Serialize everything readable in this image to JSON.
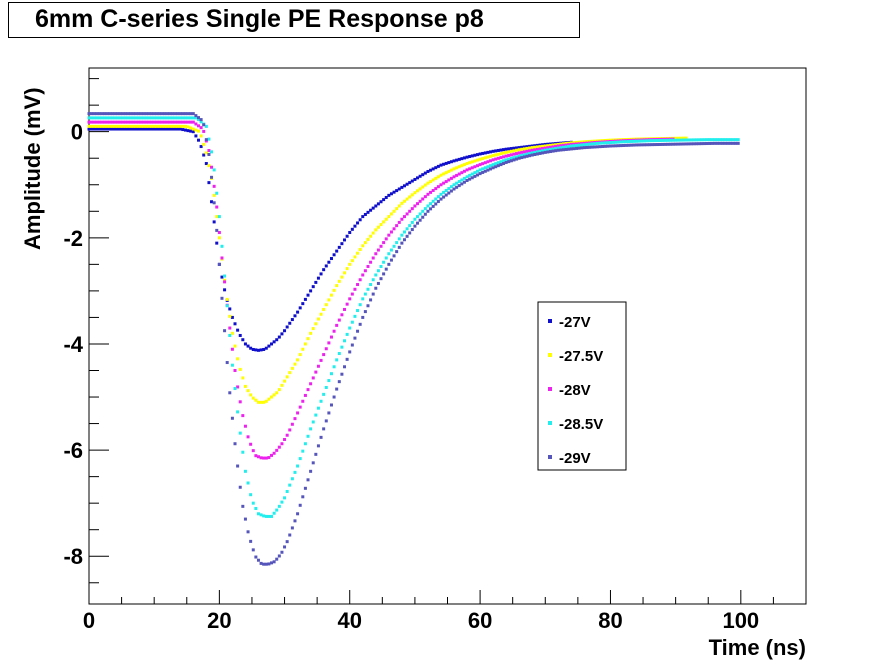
{
  "title": "6mm C-series Single PE Response p8",
  "chart_data": {
    "type": "scatter",
    "xlabel": "Time (ns)",
    "ylabel": "Amplitude (mV)",
    "xlim": [
      0,
      110
    ],
    "ylim": [
      -8.9,
      1.2
    ],
    "x_ticks": [
      0,
      20,
      40,
      60,
      80,
      100
    ],
    "y_ticks": [
      0,
      -2,
      -4,
      -6,
      -8
    ],
    "legend_position": "right-center",
    "grid": false,
    "series": [
      {
        "name": "-27V",
        "color": "#1010cc",
        "points": [
          [
            0,
            0.05
          ],
          [
            8,
            0.05
          ],
          [
            14,
            0.05
          ],
          [
            16,
            0.0
          ],
          [
            17,
            -0.2
          ],
          [
            18,
            -0.6
          ],
          [
            19,
            -1.5
          ],
          [
            20,
            -2.5
          ],
          [
            21,
            -3.1
          ],
          [
            22,
            -3.5
          ],
          [
            23,
            -3.8
          ],
          [
            24,
            -4.0
          ],
          [
            25,
            -4.1
          ],
          [
            26,
            -4.12
          ],
          [
            27,
            -4.1
          ],
          [
            28,
            -4.0
          ],
          [
            29,
            -3.9
          ],
          [
            30,
            -3.75
          ],
          [
            32,
            -3.4
          ],
          [
            34,
            -3.0
          ],
          [
            36,
            -2.6
          ],
          [
            38,
            -2.25
          ],
          [
            40,
            -1.9
          ],
          [
            42,
            -1.6
          ],
          [
            44,
            -1.4
          ],
          [
            46,
            -1.2
          ],
          [
            48,
            -1.05
          ],
          [
            50,
            -0.9
          ],
          [
            52,
            -0.75
          ],
          [
            54,
            -0.63
          ],
          [
            56,
            -0.55
          ],
          [
            58,
            -0.48
          ],
          [
            60,
            -0.42
          ],
          [
            62,
            -0.37
          ],
          [
            64,
            -0.33
          ],
          [
            66,
            -0.3
          ],
          [
            68,
            -0.27
          ],
          [
            70,
            -0.24
          ],
          [
            72,
            -0.22
          ],
          [
            74,
            -0.2
          ]
        ]
      },
      {
        "name": "-27.5V",
        "color": "#ffff00",
        "points": [
          [
            0,
            0.1
          ],
          [
            8,
            0.1
          ],
          [
            15,
            0.1
          ],
          [
            17,
            0.0
          ],
          [
            18,
            -0.4
          ],
          [
            19,
            -1.0
          ],
          [
            20,
            -2.0
          ],
          [
            21,
            -3.0
          ],
          [
            22,
            -3.8
          ],
          [
            23,
            -4.4
          ],
          [
            24,
            -4.8
          ],
          [
            25,
            -5.0
          ],
          [
            26,
            -5.1
          ],
          [
            27,
            -5.1
          ],
          [
            28,
            -5.0
          ],
          [
            29,
            -4.9
          ],
          [
            30,
            -4.7
          ],
          [
            32,
            -4.3
          ],
          [
            34,
            -3.8
          ],
          [
            36,
            -3.35
          ],
          [
            38,
            -2.9
          ],
          [
            40,
            -2.5
          ],
          [
            42,
            -2.15
          ],
          [
            44,
            -1.85
          ],
          [
            46,
            -1.6
          ],
          [
            48,
            -1.35
          ],
          [
            50,
            -1.15
          ],
          [
            52,
            -0.97
          ],
          [
            54,
            -0.82
          ],
          [
            56,
            -0.7
          ],
          [
            58,
            -0.6
          ],
          [
            60,
            -0.52
          ],
          [
            62,
            -0.45
          ],
          [
            64,
            -0.39
          ],
          [
            66,
            -0.34
          ],
          [
            68,
            -0.3
          ],
          [
            70,
            -0.27
          ],
          [
            72,
            -0.24
          ],
          [
            74,
            -0.21
          ],
          [
            76,
            -0.19
          ],
          [
            80,
            -0.16
          ],
          [
            84,
            -0.14
          ],
          [
            88,
            -0.13
          ],
          [
            92,
            -0.12
          ]
        ]
      },
      {
        "name": "-28V",
        "color": "#ee22ee",
        "points": [
          [
            0,
            0.18
          ],
          [
            8,
            0.18
          ],
          [
            16,
            0.18
          ],
          [
            17.5,
            0.05
          ],
          [
            18.5,
            -0.4
          ],
          [
            19.5,
            -1.3
          ],
          [
            20.5,
            -2.5
          ],
          [
            21.5,
            -3.6
          ],
          [
            22.5,
            -4.6
          ],
          [
            23.5,
            -5.3
          ],
          [
            24.5,
            -5.8
          ],
          [
            25.5,
            -6.1
          ],
          [
            26.5,
            -6.15
          ],
          [
            27.5,
            -6.15
          ],
          [
            28.5,
            -6.05
          ],
          [
            29.5,
            -5.9
          ],
          [
            30.5,
            -5.7
          ],
          [
            32,
            -5.3
          ],
          [
            34,
            -4.75
          ],
          [
            36,
            -4.2
          ],
          [
            38,
            -3.65
          ],
          [
            40,
            -3.15
          ],
          [
            42,
            -2.7
          ],
          [
            44,
            -2.3
          ],
          [
            46,
            -1.95
          ],
          [
            48,
            -1.65
          ],
          [
            50,
            -1.4
          ],
          [
            52,
            -1.18
          ],
          [
            54,
            -1.0
          ],
          [
            56,
            -0.85
          ],
          [
            58,
            -0.72
          ],
          [
            60,
            -0.62
          ],
          [
            62,
            -0.53
          ],
          [
            64,
            -0.46
          ],
          [
            66,
            -0.4
          ],
          [
            68,
            -0.35
          ],
          [
            70,
            -0.31
          ],
          [
            72,
            -0.27
          ],
          [
            74,
            -0.24
          ],
          [
            78,
            -0.2
          ],
          [
            82,
            -0.17
          ],
          [
            86,
            -0.15
          ],
          [
            90,
            -0.14
          ]
        ]
      },
      {
        "name": "-28.5V",
        "color": "#22eeee",
        "points": [
          [
            0,
            0.26
          ],
          [
            8,
            0.26
          ],
          [
            16.5,
            0.26
          ],
          [
            18,
            0.1
          ],
          [
            19,
            -0.5
          ],
          [
            20,
            -1.6
          ],
          [
            21,
            -3.0
          ],
          [
            22,
            -4.4
          ],
          [
            23,
            -5.5
          ],
          [
            24,
            -6.4
          ],
          [
            25,
            -6.95
          ],
          [
            26,
            -7.2
          ],
          [
            27,
            -7.25
          ],
          [
            28,
            -7.25
          ],
          [
            29,
            -7.1
          ],
          [
            30,
            -6.9
          ],
          [
            31,
            -6.6
          ],
          [
            32,
            -6.3
          ],
          [
            34,
            -5.6
          ],
          [
            36,
            -4.95
          ],
          [
            38,
            -4.3
          ],
          [
            40,
            -3.7
          ],
          [
            42,
            -3.15
          ],
          [
            44,
            -2.7
          ],
          [
            46,
            -2.3
          ],
          [
            48,
            -1.95
          ],
          [
            50,
            -1.65
          ],
          [
            52,
            -1.4
          ],
          [
            54,
            -1.18
          ],
          [
            56,
            -1.0
          ],
          [
            58,
            -0.85
          ],
          [
            60,
            -0.72
          ],
          [
            62,
            -0.62
          ],
          [
            64,
            -0.53
          ],
          [
            66,
            -0.46
          ],
          [
            68,
            -0.4
          ],
          [
            70,
            -0.35
          ],
          [
            72,
            -0.31
          ],
          [
            74,
            -0.27
          ],
          [
            78,
            -0.22
          ],
          [
            82,
            -0.19
          ],
          [
            86,
            -0.17
          ],
          [
            90,
            -0.16
          ],
          [
            95,
            -0.15
          ],
          [
            100,
            -0.15
          ]
        ]
      },
      {
        "name": "-29V",
        "color": "#5555bb",
        "points": [
          [
            0,
            0.34
          ],
          [
            8,
            0.34
          ],
          [
            16,
            0.34
          ],
          [
            17.5,
            0.2
          ],
          [
            18.5,
            -0.5
          ],
          [
            19.5,
            -1.7
          ],
          [
            20.5,
            -3.3
          ],
          [
            21.5,
            -4.8
          ],
          [
            22.5,
            -6.0
          ],
          [
            23.5,
            -7.0
          ],
          [
            24.5,
            -7.6
          ],
          [
            25.5,
            -8.0
          ],
          [
            26.5,
            -8.15
          ],
          [
            27.5,
            -8.15
          ],
          [
            28.5,
            -8.1
          ],
          [
            29.5,
            -7.95
          ],
          [
            30.5,
            -7.7
          ],
          [
            32,
            -7.2
          ],
          [
            34,
            -6.4
          ],
          [
            36,
            -5.6
          ],
          [
            38,
            -4.85
          ],
          [
            40,
            -4.15
          ],
          [
            42,
            -3.5
          ],
          [
            44,
            -2.95
          ],
          [
            46,
            -2.5
          ],
          [
            48,
            -2.1
          ],
          [
            50,
            -1.78
          ],
          [
            52,
            -1.5
          ],
          [
            54,
            -1.27
          ],
          [
            56,
            -1.08
          ],
          [
            58,
            -0.92
          ],
          [
            60,
            -0.79
          ],
          [
            62,
            -0.68
          ],
          [
            64,
            -0.58
          ],
          [
            66,
            -0.5
          ],
          [
            68,
            -0.44
          ],
          [
            70,
            -0.39
          ],
          [
            72,
            -0.35
          ],
          [
            76,
            -0.3
          ],
          [
            80,
            -0.27
          ],
          [
            84,
            -0.25
          ],
          [
            88,
            -0.24
          ],
          [
            92,
            -0.23
          ],
          [
            96,
            -0.22
          ],
          [
            100,
            -0.22
          ]
        ]
      }
    ]
  }
}
